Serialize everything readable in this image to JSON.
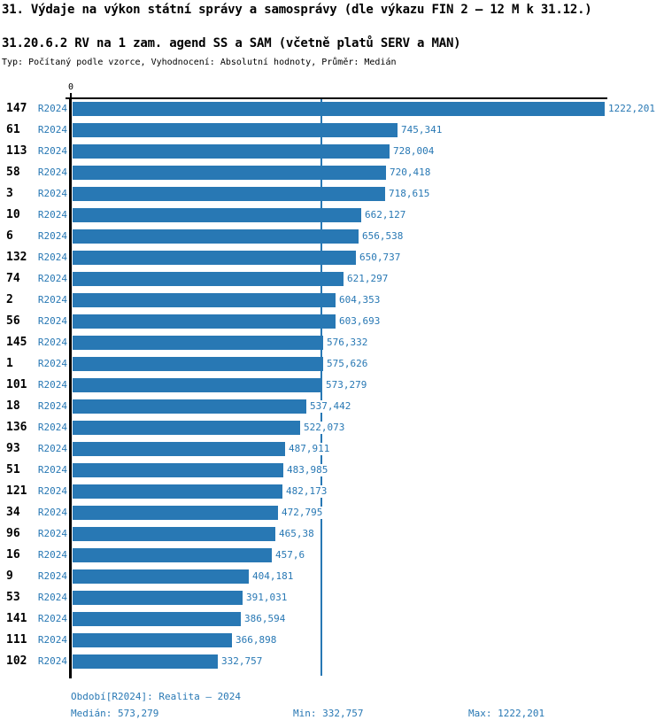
{
  "header": {
    "title": "31. Výdaje na výkon státní správy a samosprávy (dle výkazu FIN 2 – 12 M k 31.12.)",
    "subtitle": "31.20.6.2 RV na 1 zam. agend SS a SAM (včetně platů SERV a MAN)",
    "meta": "Typ: Počítaný podle vzorce, Vyhodnocení: Absolutní hodnoty, Průměr: Medián"
  },
  "chart_data": {
    "type": "bar",
    "orientation": "horizontal",
    "title": "31. Výdaje na výkon státní správy a samosprávy (dle výkazu FIN 2 – 12 M k 31.12.)",
    "subtitle": "31.20.6.2 RV na 1 zam. agend SS a SAM (včetně platů SERV a MAN)",
    "series_label": "R2024",
    "zero_tick_label": "0",
    "grid": false,
    "legend_position": "none",
    "xlim": [
      0,
      1228
    ],
    "median": 573.279,
    "min": 332.757,
    "max": 1222.201,
    "bar_color": "#2878b4",
    "categories": [
      "147",
      "61",
      "113",
      "58",
      "3",
      "10",
      "6",
      "132",
      "74",
      "2",
      "56",
      "145",
      "1",
      "101",
      "18",
      "136",
      "93",
      "51",
      "121",
      "34",
      "96",
      "16",
      "9",
      "53",
      "141",
      "111",
      "102"
    ],
    "values": [
      1222.201,
      745.341,
      728.004,
      720.418,
      718.615,
      662.127,
      656.538,
      650.737,
      621.297,
      604.353,
      603.693,
      576.332,
      575.626,
      573.279,
      537.442,
      522.073,
      487.911,
      483.985,
      482.173,
      472.795,
      465.38,
      457.6,
      404.181,
      391.031,
      386.594,
      366.898,
      332.757
    ],
    "value_labels": [
      "1222,201",
      "745,341",
      "728,004",
      "720,418",
      "718,615",
      "662,127",
      "656,538",
      "650,737",
      "621,297",
      "604,353",
      "603,693",
      "576,332",
      "575,626",
      "573,279",
      "537,442",
      "522,073",
      "487,911",
      "483,985",
      "482,173",
      "472,795",
      "465,38",
      "457,6",
      "404,181",
      "391,031",
      "386,594",
      "366,898",
      "332,757"
    ]
  },
  "footer": {
    "period": "Období[R2024]: Realita – 2024",
    "median": "Medián: 573,279",
    "min": "Min: 332,757",
    "max": "Max: 1222,201"
  }
}
